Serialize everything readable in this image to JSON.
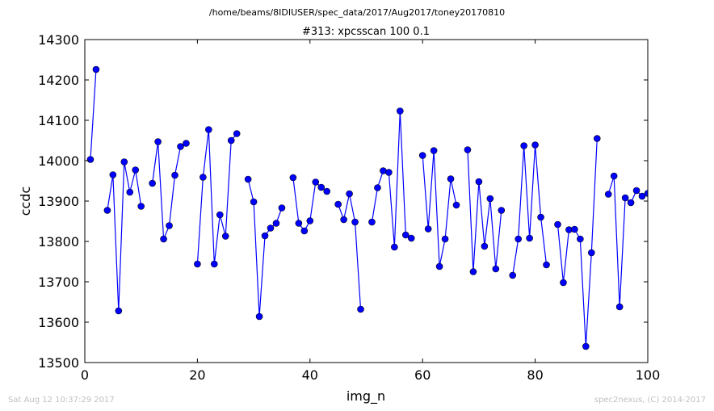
{
  "figure": {
    "suptitle": "/home/beams/8IDIUSER/spec_data/2017/Aug2017/toney20170810",
    "footer_left": "Sat Aug 12 10:37:29 2017",
    "footer_right": "spec2nexus, (C) 2014-2017"
  },
  "chart_data": {
    "type": "line",
    "title": "#313: xpcsscan 100 0.1",
    "xlabel": "img_n",
    "ylabel": "ccdc",
    "xlim": [
      0,
      100
    ],
    "ylim": [
      13500,
      14300
    ],
    "xticks": [
      "0",
      "20",
      "40",
      "60",
      "80",
      "100"
    ],
    "yticks": [
      "13500",
      "13600",
      "13700",
      "13800",
      "13900",
      "14000",
      "14100",
      "14200",
      "14300"
    ],
    "grid": false,
    "line_color": "#0000ff",
    "marker_color": "#0000ff",
    "x": [
      1,
      2,
      3,
      4,
      5,
      6,
      7,
      8,
      9,
      10,
      11,
      12,
      13,
      14,
      15,
      16,
      17,
      18,
      19,
      20,
      21,
      22,
      23,
      24,
      25,
      26,
      27,
      28,
      29,
      30,
      31,
      32,
      33,
      34,
      35,
      36,
      37,
      38,
      39,
      40,
      41,
      42,
      43,
      44,
      45,
      46,
      47,
      48,
      49,
      50,
      51,
      52,
      53,
      54,
      55,
      56,
      57,
      58,
      59,
      60,
      61,
      62,
      63,
      64,
      65,
      66,
      67,
      68,
      69,
      70,
      71,
      72,
      73,
      74,
      75,
      76,
      77,
      78,
      79,
      80,
      81,
      82,
      83,
      84,
      85,
      86,
      87,
      88,
      89,
      90,
      91,
      92,
      93,
      94,
      95,
      96,
      97,
      98,
      99,
      100
    ],
    "y": [
      14003,
      14226,
      null,
      13877,
      13965,
      13628,
      13997,
      13922,
      13977,
      13887,
      null,
      13944,
      14047,
      13806,
      13839,
      13964,
      14035,
      14043,
      null,
      13744,
      13959,
      14077,
      13744,
      13866,
      13813,
      14050,
      14067,
      null,
      13954,
      13898,
      13614,
      13814,
      13833,
      13845,
      13883,
      null,
      13958,
      13845,
      13826,
      13851,
      13947,
      13934,
      13924,
      null,
      13892,
      13854,
      13918,
      13848,
      13632,
      null,
      13848,
      13933,
      13975,
      13971,
      13786,
      14123,
      13816,
      13808,
      null,
      14013,
      13831,
      14025,
      13738,
      13806,
      13955,
      13890,
      null,
      14027,
      13725,
      13948,
      13788,
      13906,
      13732,
      13877,
      null,
      13716,
      13806,
      14037,
      13808,
      14039,
      13860,
      13742,
      null,
      13842,
      13698,
      13829,
      13830,
      13806,
      13540,
      13772,
      14055,
      null,
      13917,
      13962,
      13638,
      13908,
      13896,
      13926,
      13912,
      13919
    ]
  }
}
